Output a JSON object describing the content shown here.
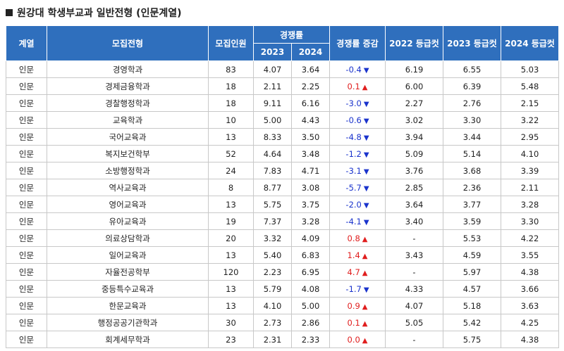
{
  "title": "원강대 학생부교과 일반전형 (인문계열)",
  "headers": {
    "field": "계열",
    "type": "모집전형",
    "quota": "모집인원",
    "competition": "경쟁률",
    "y2023": "2023",
    "y2024": "2024",
    "change": "경쟁률 증감",
    "cut2022": "2022 등급컷",
    "cut2023": "2023 등급컷",
    "cut2024": "2024 등급컷"
  },
  "rows": [
    {
      "field": "인문",
      "dept": "경영학과",
      "quota": "83",
      "c2023": "4.07",
      "c2024": "3.64",
      "change": "-0.4",
      "dir": "down",
      "cut2022": "6.19",
      "cut2023": "6.55",
      "cut2024": "5.03"
    },
    {
      "field": "인문",
      "dept": "경제금융학과",
      "quota": "18",
      "c2023": "2.11",
      "c2024": "2.25",
      "change": "0.1",
      "dir": "up",
      "cut2022": "6.00",
      "cut2023": "6.39",
      "cut2024": "5.48"
    },
    {
      "field": "인문",
      "dept": "경찰행정학과",
      "quota": "18",
      "c2023": "9.11",
      "c2024": "6.16",
      "change": "-3.0",
      "dir": "down",
      "cut2022": "2.27",
      "cut2023": "2.76",
      "cut2024": "2.15"
    },
    {
      "field": "인문",
      "dept": "교육학과",
      "quota": "10",
      "c2023": "5.00",
      "c2024": "4.43",
      "change": "-0.6",
      "dir": "down",
      "cut2022": "3.02",
      "cut2023": "3.30",
      "cut2024": "3.22"
    },
    {
      "field": "인문",
      "dept": "국어교육과",
      "quota": "13",
      "c2023": "8.33",
      "c2024": "3.50",
      "change": "-4.8",
      "dir": "down",
      "cut2022": "3.94",
      "cut2023": "3.44",
      "cut2024": "2.95"
    },
    {
      "field": "인문",
      "dept": "복지보건학부",
      "quota": "52",
      "c2023": "4.64",
      "c2024": "3.48",
      "change": "-1.2",
      "dir": "down",
      "cut2022": "5.09",
      "cut2023": "5.14",
      "cut2024": "4.10"
    },
    {
      "field": "인문",
      "dept": "소방행정학과",
      "quota": "24",
      "c2023": "7.83",
      "c2024": "4.71",
      "change": "-3.1",
      "dir": "down",
      "cut2022": "3.76",
      "cut2023": "3.68",
      "cut2024": "3.39"
    },
    {
      "field": "인문",
      "dept": "역사교육과",
      "quota": "8",
      "c2023": "8.77",
      "c2024": "3.08",
      "change": "-5.7",
      "dir": "down",
      "cut2022": "2.85",
      "cut2023": "2.36",
      "cut2024": "2.11"
    },
    {
      "field": "인문",
      "dept": "영어교육과",
      "quota": "13",
      "c2023": "5.75",
      "c2024": "3.75",
      "change": "-2.0",
      "dir": "down",
      "cut2022": "3.64",
      "cut2023": "3.77",
      "cut2024": "3.28"
    },
    {
      "field": "인문",
      "dept": "유아교육과",
      "quota": "19",
      "c2023": "7.37",
      "c2024": "3.28",
      "change": "-4.1",
      "dir": "down",
      "cut2022": "3.40",
      "cut2023": "3.59",
      "cut2024": "3.30"
    },
    {
      "field": "인문",
      "dept": "의료상담학과",
      "quota": "20",
      "c2023": "3.32",
      "c2024": "4.09",
      "change": "0.8",
      "dir": "up",
      "cut2022": "-",
      "cut2023": "5.53",
      "cut2024": "4.22"
    },
    {
      "field": "인문",
      "dept": "일어교육과",
      "quota": "13",
      "c2023": "5.40",
      "c2024": "6.83",
      "change": "1.4",
      "dir": "up",
      "cut2022": "3.43",
      "cut2023": "4.59",
      "cut2024": "3.55"
    },
    {
      "field": "인문",
      "dept": "자율전공학부",
      "quota": "120",
      "c2023": "2.23",
      "c2024": "6.95",
      "change": "4.7",
      "dir": "up",
      "cut2022": "-",
      "cut2023": "5.97",
      "cut2024": "4.38"
    },
    {
      "field": "인문",
      "dept": "중등특수교육과",
      "quota": "13",
      "c2023": "5.79",
      "c2024": "4.08",
      "change": "-1.7",
      "dir": "down",
      "cut2022": "4.33",
      "cut2023": "4.57",
      "cut2024": "3.66"
    },
    {
      "field": "인문",
      "dept": "한문교육과",
      "quota": "13",
      "c2023": "4.10",
      "c2024": "5.00",
      "change": "0.9",
      "dir": "up",
      "cut2022": "4.07",
      "cut2023": "5.18",
      "cut2024": "3.63"
    },
    {
      "field": "인문",
      "dept": "행정공공기관학과",
      "quota": "30",
      "c2023": "2.73",
      "c2024": "2.86",
      "change": "0.1",
      "dir": "up",
      "cut2022": "5.05",
      "cut2023": "5.42",
      "cut2024": "4.25"
    },
    {
      "field": "인문",
      "dept": "회계세무학과",
      "quota": "23",
      "c2023": "2.31",
      "c2024": "2.33",
      "change": "0.0",
      "dir": "up",
      "cut2022": "-",
      "cut2023": "5.75",
      "cut2024": "4.38"
    }
  ]
}
